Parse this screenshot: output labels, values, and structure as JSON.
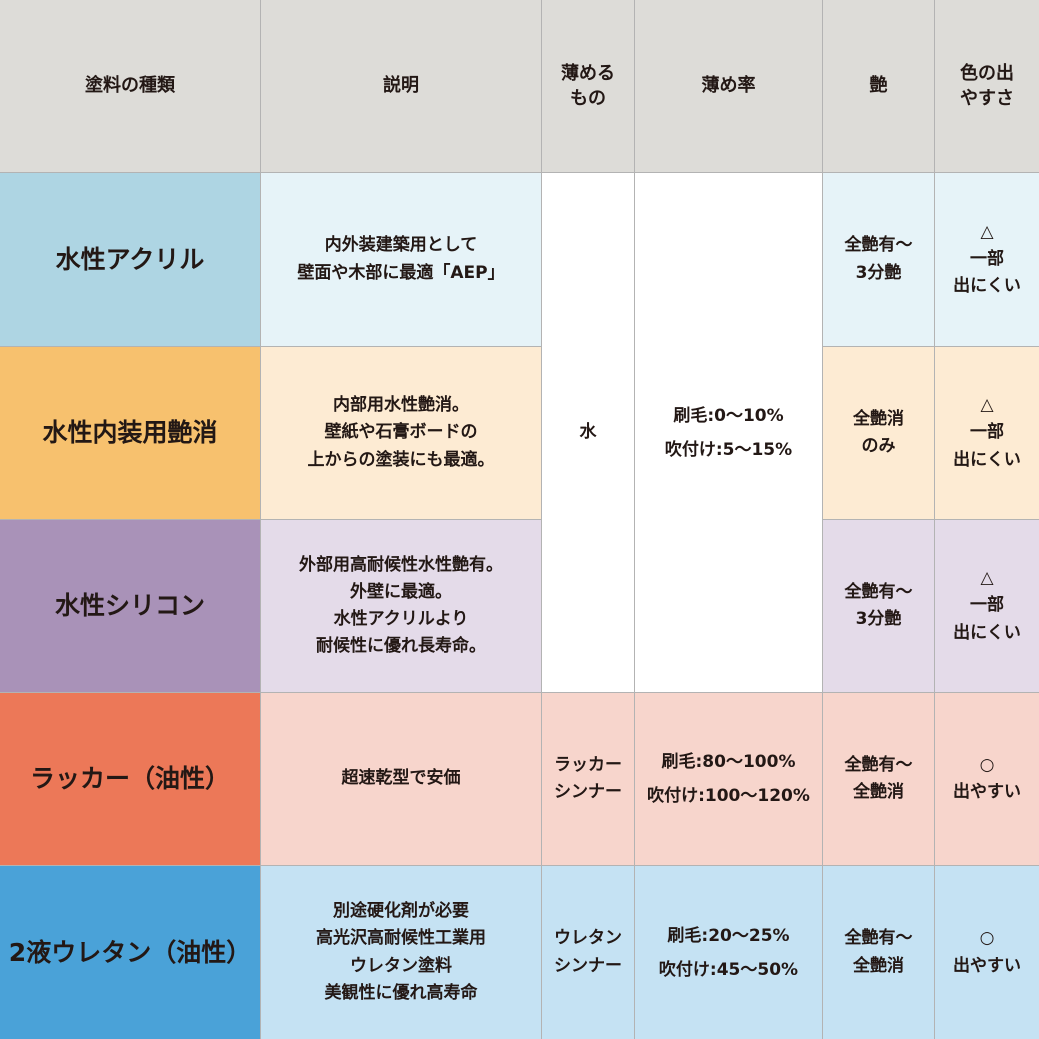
{
  "headers": [
    "塗料の種類",
    "説明",
    "薄める\nもの",
    "薄め率",
    "艶",
    "色の出\nやすさ"
  ],
  "rows": [
    {
      "name": "水性アクリル",
      "desc": "内外装建築用として\n壁面や木部に最適「AEP」",
      "gloss": "全艶有〜\n3分艶",
      "color": "△\n一部\n出にくい",
      "name_bg": "#aed5e3",
      "bg": "#e6f3f8"
    },
    {
      "name": "水性内装用艶消",
      "desc": "内部用水性艶消。\n壁紙や石膏ボードの\n上からの塗装にも最適。",
      "gloss": "全艶消\nのみ",
      "color": "△\n一部\n出にくい",
      "name_bg": "#f7c16e",
      "bg": "#fdebd3"
    },
    {
      "name": "水性シリコン",
      "desc": "外部用高耐候性水性艶有。\n外壁に最適。\n水性アクリルより\n耐候性に優れ長寿命。",
      "gloss": "全艶有〜\n3分艶",
      "color": "△\n一部\n出にくい",
      "name_bg": "#a992b8",
      "bg": "#e4dbe9"
    },
    {
      "name": "ラッカー（油性）",
      "desc": "超速乾型で安価",
      "thinner": "ラッカー\nシンナー",
      "ratio": "刷毛:80〜100%\n吹付け:100〜120%",
      "gloss": "全艶有〜\n全艶消",
      "color": "○\n出やすい",
      "name_bg": "#ec7858",
      "bg": "#f7d5cc"
    },
    {
      "name": "2液ウレタン（油性）",
      "desc": "別途硬化剤が必要\n高光沢高耐候性工業用\nウレタン塗料\n美観性に優れ高寿命",
      "thinner": "ウレタン\nシンナー",
      "ratio": "刷毛:20〜25%\n吹付け:45〜50%",
      "gloss": "全艶有〜\n全艶消",
      "color": "○\n出やすい",
      "name_bg": "#4aa2d8",
      "bg": "#c5e2f3"
    }
  ],
  "water_group": {
    "thinner": "水",
    "ratio": "刷毛:0〜10%\n吹付け:5〜15%"
  }
}
